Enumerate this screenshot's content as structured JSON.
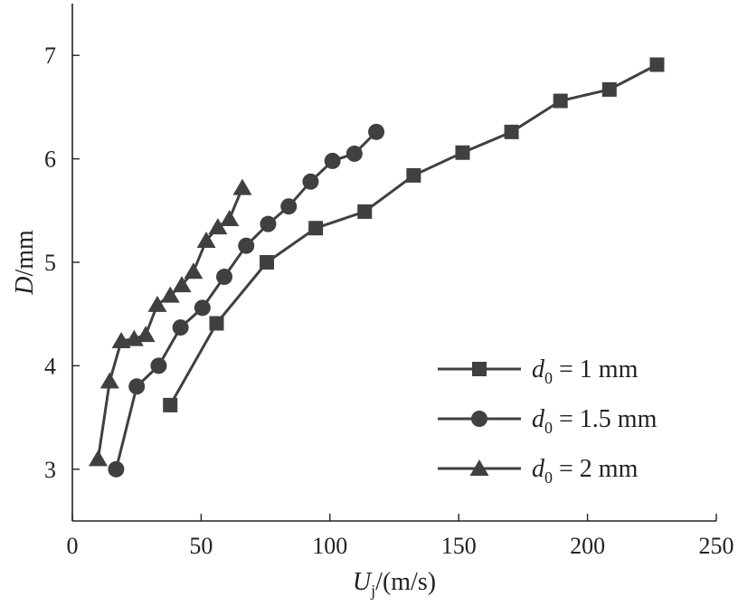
{
  "chart_data": {
    "type": "line",
    "xlabel_main": "U",
    "xlabel_sub": "j",
    "xlabel_unit": "/(m/s)",
    "ylabel_main": "D",
    "ylabel_unit": "/mm",
    "xlim": [
      0,
      250
    ],
    "ylim": [
      2.5,
      7.5
    ],
    "xticks": [
      0,
      50,
      100,
      150,
      200,
      250
    ],
    "yticks": [
      3,
      4,
      5,
      6,
      7
    ],
    "grid": false,
    "legend_position": "bottom-right",
    "color": "#404040",
    "series": [
      {
        "legend_main": "d",
        "legend_sub": "0",
        "legend_rest": " = 1 mm",
        "marker": "square",
        "x": [
          38,
          56,
          75.5,
          94.5,
          113.5,
          132.5,
          151.5,
          170.5,
          189.5,
          208.5,
          227
        ],
        "y": [
          3.62,
          4.41,
          5.0,
          5.33,
          5.49,
          5.84,
          6.06,
          6.26,
          6.56,
          6.67,
          6.91
        ]
      },
      {
        "legend_main": "d",
        "legend_sub": "0",
        "legend_rest": " = 1.5 mm",
        "marker": "circle",
        "x": [
          17,
          25,
          33.5,
          42,
          50.5,
          59,
          67.5,
          76,
          84,
          92.5,
          101,
          109.5,
          118
        ],
        "y": [
          3.0,
          3.8,
          4.0,
          4.37,
          4.56,
          4.86,
          5.16,
          5.37,
          5.54,
          5.78,
          5.98,
          6.05,
          6.26
        ]
      },
      {
        "legend_main": "d",
        "legend_sub": "0",
        "legend_rest": " = 2 mm",
        "marker": "triangle",
        "x": [
          10,
          14.5,
          19,
          24,
          28.5,
          33,
          38,
          42.5,
          47,
          52,
          56.5,
          61,
          66
        ],
        "y": [
          3.1,
          3.85,
          4.24,
          4.26,
          4.3,
          4.59,
          4.68,
          4.78,
          4.91,
          5.21,
          5.34,
          5.42,
          5.72
        ]
      }
    ]
  }
}
